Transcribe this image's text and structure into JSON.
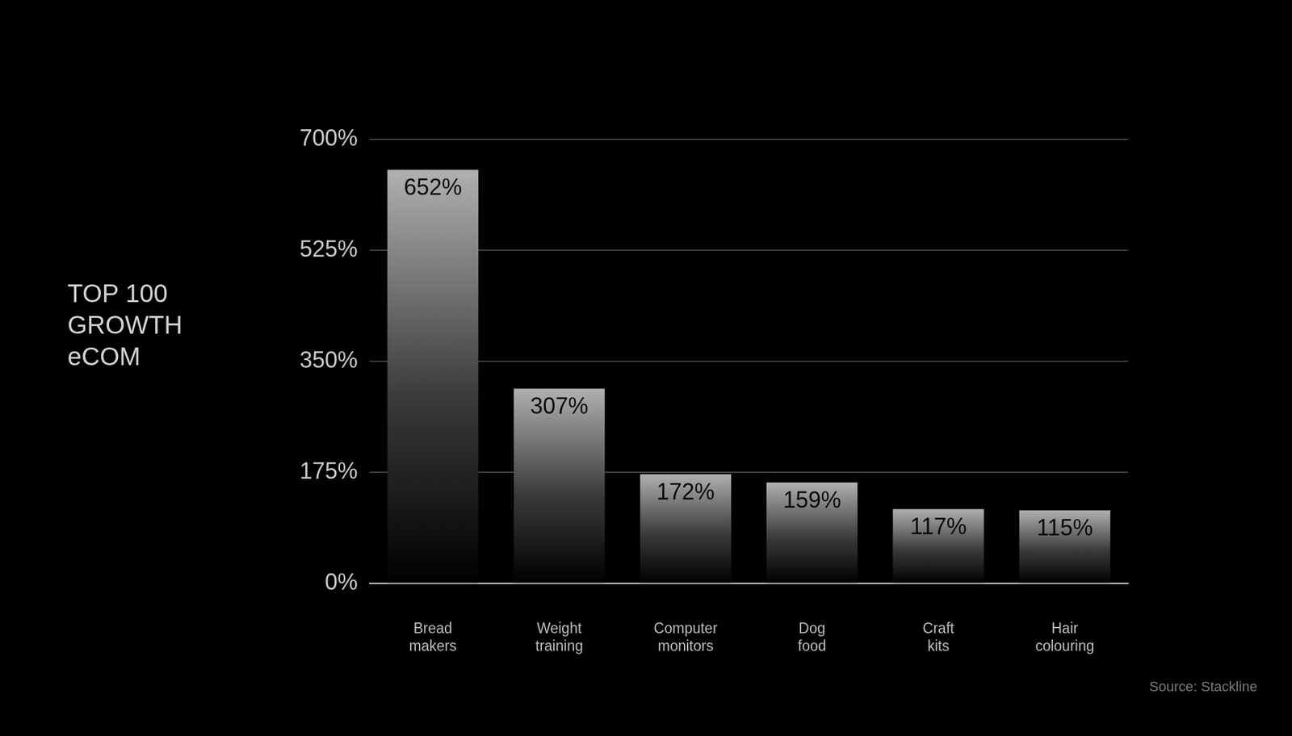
{
  "chart_data": {
    "type": "bar",
    "title": [
      "TOP 100",
      "GROWTH",
      "eCOM"
    ],
    "source": "Source: Stackline",
    "categories": [
      "Bread makers",
      "Weight training",
      "Computer monitors",
      "Dog food",
      "Craft kits",
      "Hair colouring"
    ],
    "values": [
      652,
      307,
      172,
      159,
      117,
      115
    ],
    "value_labels": [
      "652%",
      "307%",
      "172%",
      "159%",
      "117%",
      "115%"
    ],
    "color": "#b0b0b0",
    "ylim": [
      0,
      700
    ],
    "yticks": [
      {
        "value": 0,
        "label": "0%"
      },
      {
        "value": 175,
        "label": "175%"
      },
      {
        "value": 350,
        "label": "350%"
      },
      {
        "value": 525,
        "label": "525%"
      },
      {
        "value": 700,
        "label": "700%"
      }
    ],
    "grid": true,
    "data_labels": true
  }
}
